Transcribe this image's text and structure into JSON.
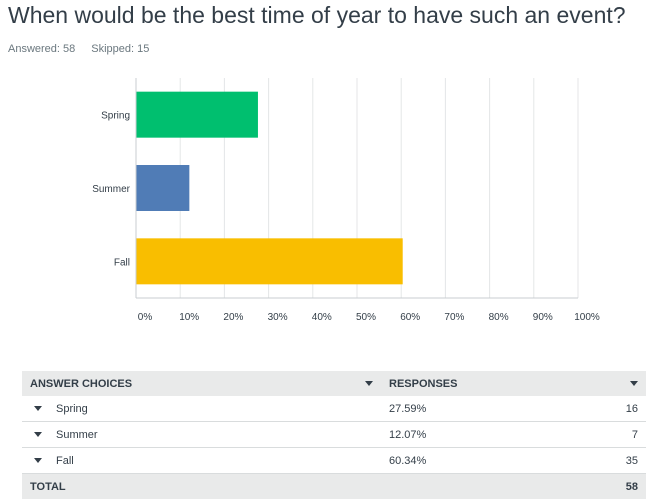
{
  "question": {
    "title": "When would be the best time of year to have such an event?",
    "answered": "Answered: 58",
    "skipped": "Skipped: 15"
  },
  "chart_data": {
    "type": "bar",
    "orientation": "horizontal",
    "categories": [
      "Spring",
      "Summer",
      "Fall"
    ],
    "values": [
      27.59,
      12.07,
      60.34
    ],
    "colors": [
      "#00bf6f",
      "#507cb6",
      "#f9be00"
    ],
    "xlim": [
      0,
      100
    ],
    "xticks": [
      "0%",
      "10%",
      "20%",
      "30%",
      "40%",
      "50%",
      "60%",
      "70%",
      "80%",
      "90%",
      "100%"
    ],
    "grid": true
  },
  "table": {
    "headers": {
      "choices": "ANSWER CHOICES",
      "responses": "RESPONSES"
    },
    "rows": [
      {
        "label": "Spring",
        "percent": "27.59%",
        "count": "16"
      },
      {
        "label": "Summer",
        "percent": "12.07%",
        "count": "7"
      },
      {
        "label": "Fall",
        "percent": "60.34%",
        "count": "35"
      }
    ],
    "total": {
      "label": "TOTAL",
      "count": "58"
    }
  }
}
